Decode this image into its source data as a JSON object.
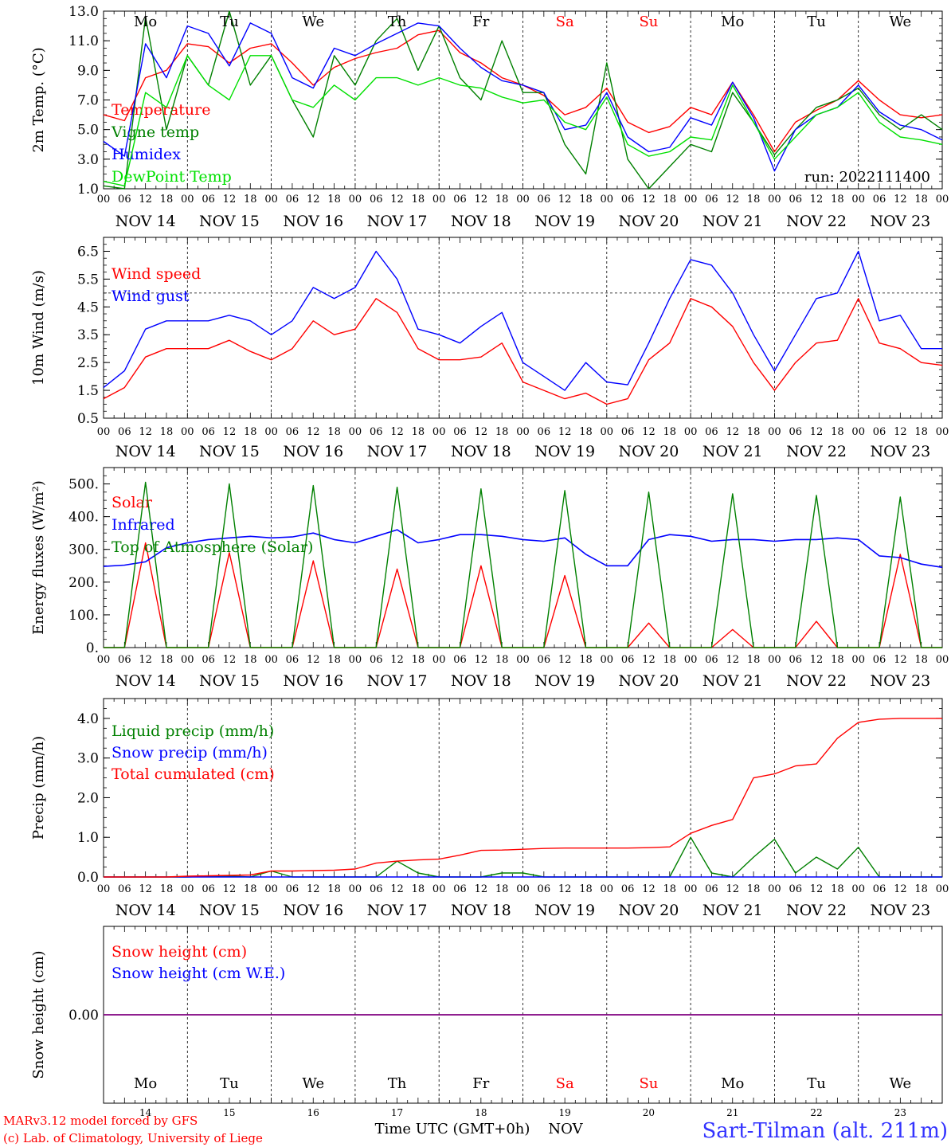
{
  "meteogram": {
    "run_label": "run: 2022111400",
    "day_abbr": [
      "Mo",
      "Tu",
      "We",
      "Th",
      "Fr",
      "Sa",
      "Su",
      "Mo",
      "Tu",
      "We"
    ],
    "weekend_days": [
      5,
      6
    ],
    "hour_ticks": [
      "00",
      "06",
      "12",
      "18"
    ],
    "date_labels": [
      "NOV 14",
      "NOV 15",
      "NOV 16",
      "NOV 17",
      "NOV 18",
      "NOV 19",
      "NOV 20",
      "NOV 21",
      "NOV 22",
      "NOV 23"
    ],
    "day_numbers": [
      "14",
      "15",
      "16",
      "17",
      "18",
      "19",
      "20",
      "21",
      "22",
      "23"
    ],
    "xlabel": "Time UTC (GMT+0h)",
    "month_label": "NOV",
    "credits_line1": "MARv3.12 model forced by GFS",
    "credits_line2": "(c) Lab. of Climatology, University of Liege",
    "station": "Sart-Tilman (alt. 211m)",
    "colors": {
      "red": "#ff0000",
      "green": "#008000",
      "blue": "#0000ff",
      "lightgreen": "#00e000",
      "purple": "#800080",
      "station": "#3333ff"
    }
  },
  "chart_data": [
    {
      "type": "line",
      "ylabel": "2m Temp. (°C)",
      "ylim": [
        1.0,
        13.0
      ],
      "yticks": [
        "13.0",
        "11.0",
        "9.0",
        "7.0",
        "5.0",
        "3.0",
        "1.0"
      ],
      "x_hours": [
        0,
        6,
        12,
        18,
        24,
        30,
        36,
        42,
        48,
        54,
        60,
        66,
        72,
        78,
        84,
        90,
        96,
        102,
        108,
        114,
        120,
        126,
        132,
        138,
        144,
        150,
        156,
        162,
        168,
        174,
        180,
        186,
        192,
        198,
        204,
        210,
        216,
        222,
        228,
        234,
        240
      ],
      "series": [
        {
          "name": "Temperature",
          "color": "red",
          "values": [
            6.0,
            5.6,
            8.5,
            9.0,
            10.8,
            10.6,
            9.5,
            10.5,
            10.8,
            9.5,
            8.0,
            9.2,
            9.8,
            10.2,
            10.5,
            11.4,
            11.7,
            10.2,
            9.5,
            8.5,
            8.0,
            7.3,
            6.0,
            6.5,
            7.8,
            5.5,
            4.8,
            5.2,
            6.5,
            6.0,
            8.2,
            6.0,
            3.5,
            5.5,
            6.3,
            7.0,
            8.3,
            7.0,
            6.0,
            5.8,
            6.0
          ]
        },
        {
          "name": "Vigne temp",
          "color": "green",
          "values": [
            1.2,
            1.0,
            12.6,
            5.0,
            10.0,
            8.0,
            13.0,
            8.0,
            10.0,
            7.0,
            4.5,
            10.0,
            8.0,
            11.0,
            12.5,
            9.0,
            12.0,
            8.5,
            7.0,
            11.0,
            7.5,
            7.5,
            4.0,
            2.0,
            9.5,
            3.0,
            1.0,
            2.5,
            4.0,
            3.5,
            7.5,
            5.5,
            3.3,
            5.0,
            6.5,
            7.0,
            7.8,
            6.0,
            5.0,
            6.0,
            5.0
          ]
        },
        {
          "name": "Humidex",
          "color": "blue",
          "values": [
            4.2,
            3.2,
            10.8,
            8.5,
            12.0,
            11.5,
            9.3,
            12.2,
            11.5,
            8.5,
            7.8,
            10.5,
            10.0,
            10.8,
            11.5,
            12.2,
            12.0,
            10.5,
            9.2,
            8.3,
            8.0,
            7.5,
            5.0,
            5.3,
            7.5,
            4.5,
            3.5,
            3.8,
            5.8,
            5.3,
            8.2,
            5.8,
            2.2,
            5.0,
            6.0,
            6.5,
            8.0,
            6.2,
            5.3,
            5.0,
            4.3
          ]
        },
        {
          "name": "DewPoint Temp",
          "color": "lightgreen",
          "values": [
            1.5,
            1.2,
            7.5,
            6.5,
            10.0,
            8.0,
            7.0,
            10.0,
            10.0,
            7.0,
            6.5,
            8.0,
            7.0,
            8.5,
            8.5,
            8.0,
            8.5,
            8.0,
            7.8,
            7.2,
            6.8,
            7.0,
            5.5,
            5.0,
            7.2,
            4.0,
            3.2,
            3.5,
            4.5,
            4.3,
            8.0,
            5.5,
            3.0,
            4.5,
            6.0,
            6.5,
            7.5,
            5.5,
            4.5,
            4.3,
            4.0
          ]
        }
      ]
    },
    {
      "type": "line",
      "ylabel": "10m Wind (m/s)",
      "ylim": [
        0.5,
        7.0
      ],
      "yticks": [
        "6.5",
        "5.5",
        "4.5",
        "3.5",
        "2.5",
        "1.5",
        "0.5"
      ],
      "reference_line": 5.0,
      "x_hours": [
        0,
        6,
        12,
        18,
        24,
        30,
        36,
        42,
        48,
        54,
        60,
        66,
        72,
        78,
        84,
        90,
        96,
        102,
        108,
        114,
        120,
        126,
        132,
        138,
        144,
        150,
        156,
        162,
        168,
        174,
        180,
        186,
        192,
        198,
        204,
        210,
        216,
        222,
        228,
        234,
        240
      ],
      "series": [
        {
          "name": "Wind speed",
          "color": "red",
          "values": [
            1.2,
            1.6,
            2.7,
            3.0,
            3.0,
            3.0,
            3.3,
            2.9,
            2.6,
            3.0,
            4.0,
            3.5,
            3.7,
            4.8,
            4.3,
            3.0,
            2.6,
            2.6,
            2.7,
            3.2,
            1.8,
            1.5,
            1.2,
            1.4,
            1.0,
            1.2,
            2.6,
            3.2,
            4.8,
            4.5,
            3.8,
            2.5,
            1.5,
            2.5,
            3.2,
            3.3,
            4.8,
            3.2,
            3.0,
            2.5,
            2.4
          ]
        },
        {
          "name": "Wind gust",
          "color": "blue",
          "values": [
            1.6,
            2.2,
            3.7,
            4.0,
            4.0,
            4.0,
            4.2,
            4.0,
            3.5,
            4.0,
            5.2,
            4.8,
            5.2,
            6.5,
            5.5,
            3.7,
            3.5,
            3.2,
            3.8,
            4.3,
            2.5,
            2.0,
            1.5,
            2.5,
            1.8,
            1.7,
            3.2,
            4.8,
            6.2,
            6.0,
            5.0,
            3.5,
            2.2,
            3.5,
            4.8,
            5.0,
            6.5,
            4.0,
            4.2,
            3.0,
            3.0
          ]
        }
      ]
    },
    {
      "type": "line",
      "ylabel": "Energy fluxes (W/m²)",
      "ylim": [
        0,
        550
      ],
      "yticks": [
        "500.",
        "400.",
        "300.",
        "200.",
        "100.",
        "0."
      ],
      "x_hours": [
        0,
        6,
        12,
        18,
        24,
        30,
        36,
        42,
        48,
        54,
        60,
        66,
        72,
        78,
        84,
        90,
        96,
        102,
        108,
        114,
        120,
        126,
        132,
        138,
        144,
        150,
        156,
        162,
        168,
        174,
        180,
        186,
        192,
        198,
        204,
        210,
        216,
        222,
        228,
        234,
        240
      ],
      "series": [
        {
          "name": "Solar",
          "color": "red",
          "values": [
            0,
            0,
            320,
            0,
            0,
            0,
            290,
            0,
            0,
            0,
            265,
            0,
            0,
            0,
            240,
            0,
            0,
            0,
            250,
            0,
            0,
            0,
            220,
            0,
            0,
            0,
            75,
            0,
            0,
            0,
            55,
            0,
            0,
            0,
            80,
            0,
            0,
            0,
            285,
            0,
            0
          ]
        },
        {
          "name": "Infrared",
          "color": "blue",
          "values": [
            248,
            252,
            262,
            305,
            320,
            330,
            335,
            340,
            335,
            338,
            350,
            330,
            320,
            340,
            360,
            320,
            330,
            345,
            345,
            340,
            330,
            325,
            335,
            285,
            250,
            250,
            330,
            345,
            340,
            325,
            330,
            330,
            325,
            330,
            330,
            335,
            330,
            280,
            275,
            255,
            245
          ]
        },
        {
          "name": "Top of Atmosphere (Solar)",
          "color": "green",
          "values": [
            0,
            0,
            505,
            0,
            0,
            0,
            500,
            0,
            0,
            0,
            495,
            0,
            0,
            0,
            490,
            0,
            0,
            0,
            485,
            0,
            0,
            0,
            480,
            0,
            0,
            0,
            475,
            0,
            0,
            0,
            470,
            0,
            0,
            0,
            465,
            0,
            0,
            0,
            460,
            0,
            0
          ]
        }
      ]
    },
    {
      "type": "line",
      "ylabel": "Precip (mm/h)",
      "ylim": [
        0,
        4.5
      ],
      "yticks": [
        "4.0",
        "3.0",
        "2.0",
        "1.0",
        "0.0"
      ],
      "x_hours": [
        0,
        6,
        12,
        18,
        24,
        30,
        36,
        42,
        48,
        54,
        60,
        66,
        72,
        78,
        84,
        90,
        96,
        102,
        108,
        114,
        120,
        126,
        132,
        138,
        144,
        150,
        156,
        162,
        168,
        174,
        180,
        186,
        192,
        198,
        204,
        210,
        216,
        222,
        228,
        234,
        240
      ],
      "series": [
        {
          "name": "Liquid precip (mm/h)",
          "color": "green",
          "values": [
            0,
            0,
            0,
            0,
            0,
            0.02,
            0.02,
            0,
            0.15,
            0,
            0,
            0,
            0,
            0,
            0.4,
            0.1,
            0,
            0,
            0,
            0.1,
            0.1,
            0,
            0,
            0,
            0,
            0,
            0,
            0,
            1.0,
            0.1,
            0,
            0.5,
            0.95,
            0.1,
            0.5,
            0.2,
            0.75,
            0,
            0,
            0,
            0
          ]
        },
        {
          "name": "Snow precip (mm/h)",
          "color": "blue",
          "values": [
            0,
            0,
            0,
            0,
            0,
            0,
            0,
            0,
            0,
            0,
            0,
            0,
            0,
            0,
            0,
            0,
            0,
            0,
            0,
            0,
            0,
            0,
            0,
            0,
            0,
            0,
            0,
            0,
            0,
            0,
            0,
            0,
            0,
            0,
            0,
            0,
            0,
            0,
            0,
            0,
            0
          ]
        },
        {
          "name": "Total cumulated (cm)",
          "color": "red",
          "values": [
            0,
            0,
            0,
            0,
            0.02,
            0.03,
            0.04,
            0.05,
            0.15,
            0.15,
            0.16,
            0.17,
            0.2,
            0.35,
            0.4,
            0.43,
            0.45,
            0.55,
            0.67,
            0.68,
            0.7,
            0.72,
            0.73,
            0.73,
            0.73,
            0.73,
            0.74,
            0.76,
            1.1,
            1.3,
            1.45,
            2.5,
            2.6,
            2.8,
            2.85,
            3.5,
            3.9,
            3.98,
            4.0,
            4.0,
            4.0
          ]
        }
      ]
    },
    {
      "type": "line",
      "ylabel": "Snow height (cm)",
      "ylim": [
        -1,
        1
      ],
      "yticks": [
        "0.00"
      ],
      "x_hours": [
        0,
        240
      ],
      "series": [
        {
          "name": "Snow height (cm)",
          "color": "red",
          "values": [
            0,
            0
          ]
        },
        {
          "name": "Snow height (cm W.E.)",
          "color": "blue",
          "values": [
            0,
            0
          ]
        }
      ]
    }
  ]
}
